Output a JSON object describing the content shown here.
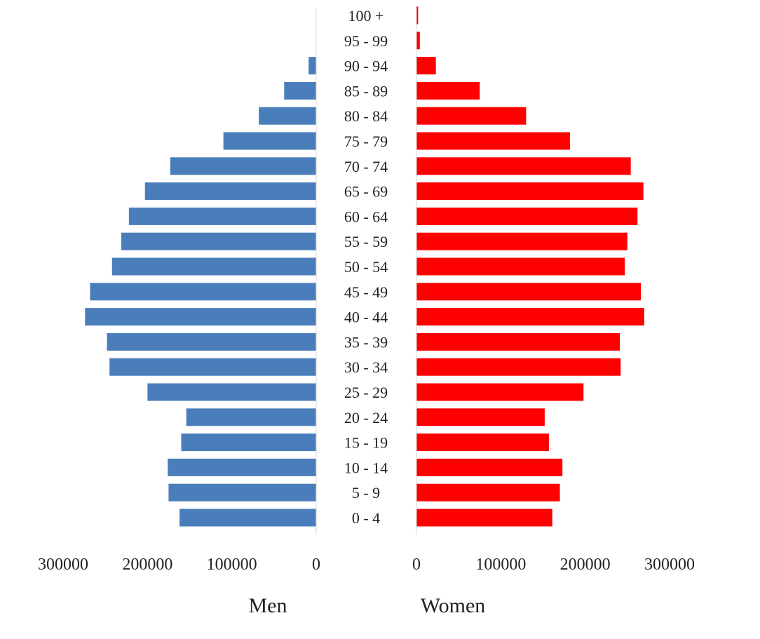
{
  "chart_data": {
    "type": "bar",
    "orientation": "horizontal",
    "layout": "population-pyramid",
    "categories": [
      "0 - 4",
      "5 - 9",
      "10 - 14",
      "15 - 19",
      "20 - 24",
      "25 - 29",
      "30 - 34",
      "35 - 39",
      "40 - 44",
      "45 - 49",
      "50 - 54",
      "55 - 59",
      "60 - 64",
      "65 - 69",
      "70 - 74",
      "75 - 79",
      "80 - 84",
      "85 - 89",
      "90 - 94",
      "95 - 99",
      "100 +"
    ],
    "series": [
      {
        "name": "Men",
        "color": "#4a7ebb",
        "values": [
          162000,
          175000,
          176000,
          160000,
          154000,
          200000,
          245000,
          248000,
          274000,
          268000,
          242000,
          231000,
          222000,
          203000,
          173000,
          110000,
          68000,
          38000,
          9000,
          0,
          0
        ]
      },
      {
        "name": "Women",
        "color": "#ff0000",
        "values": [
          161000,
          170000,
          173000,
          157000,
          152000,
          198000,
          242000,
          241000,
          270000,
          266000,
          247000,
          250000,
          262000,
          269000,
          254000,
          182000,
          130000,
          75000,
          23000,
          4000,
          2000
        ]
      }
    ],
    "x_ticks_men": [
      "300000",
      "200000",
      "100000",
      "0"
    ],
    "x_ticks_women": [
      "0",
      "100000",
      "200000",
      "300000"
    ],
    "xlim": [
      0,
      300000
    ],
    "grid": false,
    "legend": "none"
  }
}
